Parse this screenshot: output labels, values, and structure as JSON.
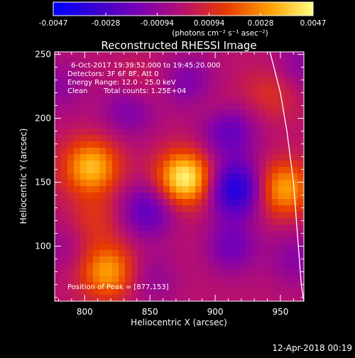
{
  "chart_data": {
    "type": "heatmap",
    "title": "Reconstructed RHESSI Image",
    "xlabel": "Heliocentric X (arcsec)",
    "ylabel": "Heliocentric Y (arcsec)",
    "xlim": [
      777,
      968
    ],
    "ylim": [
      57,
      252
    ],
    "x_ticks": [
      800,
      850,
      900,
      950
    ],
    "y_ticks": [
      100,
      150,
      200,
      250
    ],
    "colorbar": {
      "range": [
        -0.0047,
        0.0047
      ],
      "tick_values": [
        -0.0047,
        -0.0028,
        -0.00094,
        0.00094,
        0.0028,
        0.0047
      ],
      "tick_labels": [
        "-0.0047",
        "-0.0028",
        "-0.00094",
        "0.00094",
        "0.0028",
        "0.0047"
      ],
      "unit_label": "(photons cm⁻² s⁻¹ asec⁻²)",
      "colors": [
        "#0000ff",
        "#3a00d0",
        "#7a00b4",
        "#b8106e",
        "#e83a00",
        "#ffa000",
        "#ffff80"
      ]
    },
    "annotations": {
      "time_range": "6-Oct-2017 19:39:52.000 to 19:45:20.000",
      "detectors": "Detectors: 3F 6F 8F, Att 0",
      "energy": "Energy Range: 12.0 - 25.0 keV",
      "method": "Clean",
      "counts": "Total counts: 1.25E+04",
      "peak": "Position of Peak = [877,153]"
    },
    "peak": [
      877,
      153
    ],
    "sources": [
      {
        "x": 877,
        "y": 153,
        "value": 0.0047
      },
      {
        "x": 805,
        "y": 162,
        "value": 0.0036
      },
      {
        "x": 818,
        "y": 80,
        "value": 0.0032
      },
      {
        "x": 808,
        "y": 120,
        "value": 0.0012
      },
      {
        "x": 952,
        "y": 145,
        "value": 0.0033
      },
      {
        "x": 944,
        "y": 220,
        "value": 0.0012
      },
      {
        "x": 842,
        "y": 222,
        "value": 0.0009
      },
      {
        "x": 900,
        "y": 210,
        "value": 0.0006
      },
      {
        "x": 900,
        "y": 100,
        "value": 0.0006
      },
      {
        "x": 916,
        "y": 145,
        "value": -0.004
      },
      {
        "x": 910,
        "y": 190,
        "value": -0.0022
      },
      {
        "x": 910,
        "y": 100,
        "value": -0.0022
      },
      {
        "x": 848,
        "y": 128,
        "value": -0.0023
      },
      {
        "x": 835,
        "y": 208,
        "value": -0.0018
      },
      {
        "x": 880,
        "y": 228,
        "value": -0.0015
      },
      {
        "x": 780,
        "y": 225,
        "value": -0.001
      },
      {
        "x": 782,
        "y": 100,
        "value": -0.0008
      },
      {
        "x": 850,
        "y": 75,
        "value": -0.001
      },
      {
        "x": 962,
        "y": 90,
        "value": -0.0012
      },
      {
        "x": 965,
        "y": 240,
        "value": -0.0012
      }
    ],
    "limb": [
      [
        942,
        252
      ],
      [
        950,
        220
      ],
      [
        955,
        190
      ],
      [
        960,
        150
      ],
      [
        963,
        110
      ],
      [
        966,
        70
      ],
      [
        968,
        57
      ]
    ]
  },
  "footer": {
    "timestamp": "12-Apr-2018 00:19"
  }
}
